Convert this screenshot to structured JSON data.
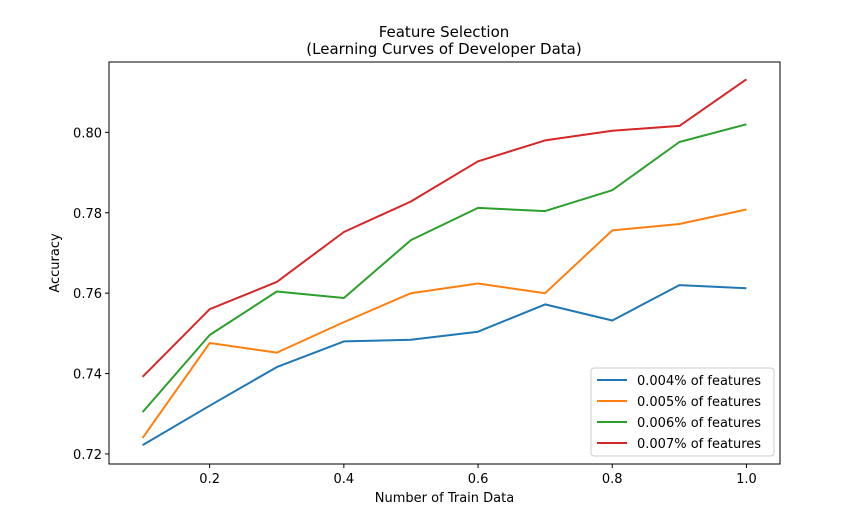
{
  "chart_data": {
    "type": "line",
    "title": "Feature Selection",
    "subtitle": "(Learning Curves of Developer Data)",
    "xlabel": "Number of Train Data",
    "ylabel": "Accuracy",
    "x": [
      0.1,
      0.2,
      0.3,
      0.4,
      0.5,
      0.6,
      0.7,
      0.8,
      0.9,
      1.0
    ],
    "xlim": [
      0.05,
      1.05
    ],
    "ylim": [
      0.7175,
      0.8175
    ],
    "xticks": [
      0.2,
      0.4,
      0.6,
      0.8,
      1.0
    ],
    "xtick_labels": [
      "0.2",
      "0.4",
      "0.6",
      "0.8",
      "1.0"
    ],
    "yticks": [
      0.72,
      0.74,
      0.76,
      0.78,
      0.8
    ],
    "ytick_labels": [
      "0.72",
      "0.74",
      "0.76",
      "0.78",
      "0.80"
    ],
    "grid": false,
    "legend_position": "lower-right",
    "series": [
      {
        "name": "0.004% of features",
        "color": "#1f77b4",
        "values": [
          0.7222,
          0.732,
          0.7416,
          0.748,
          0.7484,
          0.7504,
          0.7572,
          0.7532,
          0.762,
          0.7612
        ]
      },
      {
        "name": "0.005% of features",
        "color": "#ff7f0e",
        "values": [
          0.724,
          0.7476,
          0.7452,
          0.7528,
          0.76,
          0.7624,
          0.76,
          0.7756,
          0.7772,
          0.7808
        ]
      },
      {
        "name": "0.006% of features",
        "color": "#2ca02c",
        "values": [
          0.7304,
          0.7496,
          0.7604,
          0.7588,
          0.7732,
          0.7812,
          0.7804,
          0.7856,
          0.7976,
          0.802
        ]
      },
      {
        "name": "0.007% of features",
        "color": "#d62728",
        "values": [
          0.7392,
          0.756,
          0.7628,
          0.7752,
          0.7828,
          0.7928,
          0.798,
          0.8004,
          0.8016,
          0.8132
        ]
      }
    ]
  }
}
